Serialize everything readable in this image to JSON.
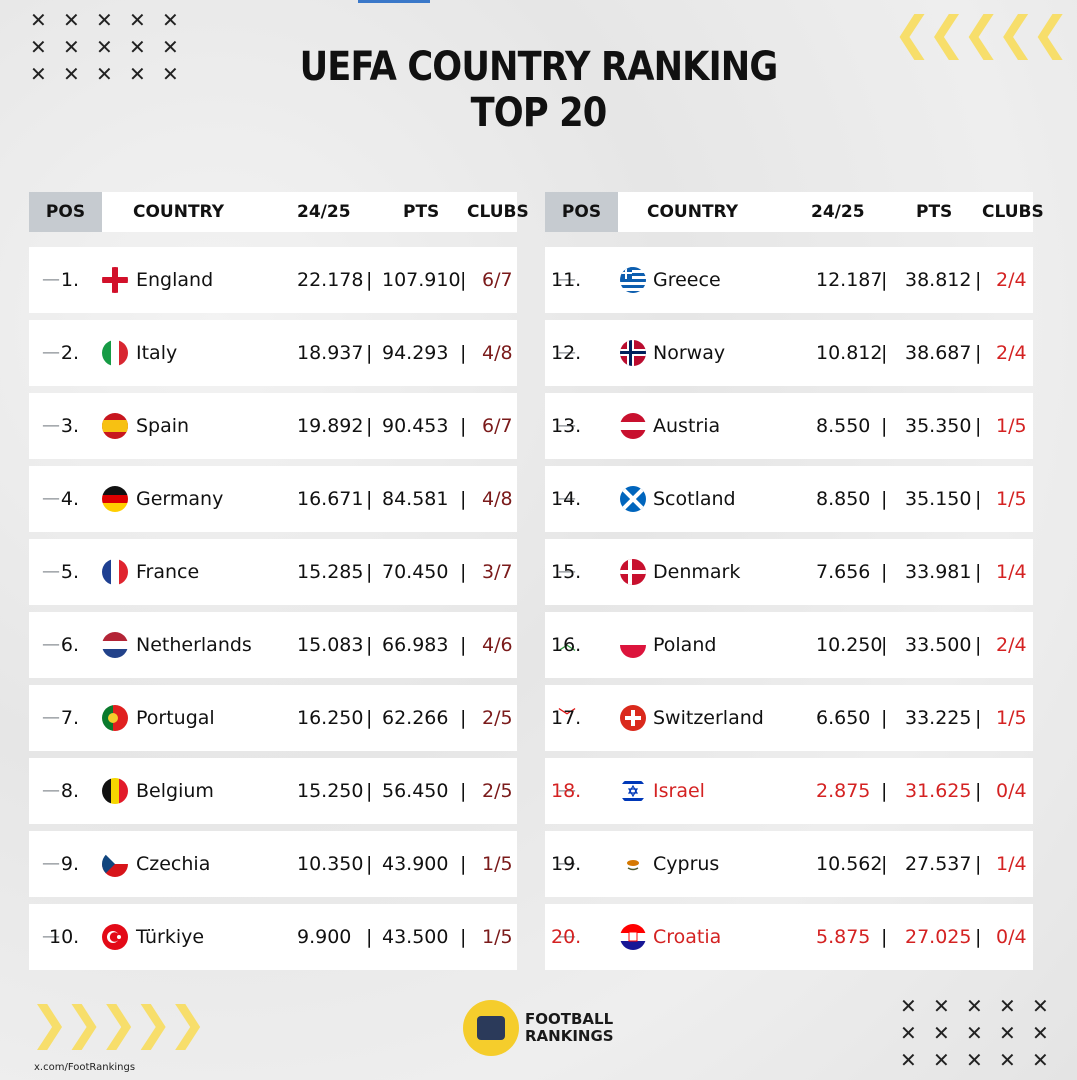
{
  "title_line1": "UEFA COUNTRY RANKING",
  "title_line2": "TOP 20",
  "headers": {
    "pos": "POS",
    "country": "COUNTRY",
    "season": "24/25",
    "pts": "PTS",
    "clubs": "CLUBS"
  },
  "left": [
    {
      "trend": "—",
      "rank": "1.",
      "flag": "england",
      "country": "England",
      "season": "22.178",
      "pts": "107.910",
      "clubs": "6/7"
    },
    {
      "trend": "—",
      "rank": "2.",
      "flag": "italy",
      "country": "Italy",
      "season": "18.937",
      "pts": "94.293",
      "clubs": "4/8"
    },
    {
      "trend": "—",
      "rank": "3.",
      "flag": "spain",
      "country": "Spain",
      "season": "19.892",
      "pts": "90.453",
      "clubs": "6/7"
    },
    {
      "trend": "—",
      "rank": "4.",
      "flag": "germany",
      "country": "Germany",
      "season": "16.671",
      "pts": "84.581",
      "clubs": "4/8"
    },
    {
      "trend": "—",
      "rank": "5.",
      "flag": "france",
      "country": "France",
      "season": "15.285",
      "pts": "70.450",
      "clubs": "3/7"
    },
    {
      "trend": "—",
      "rank": "6.",
      "flag": "netherlands",
      "country": "Netherlands",
      "season": "15.083",
      "pts": "66.983",
      "clubs": "4/6"
    },
    {
      "trend": "—",
      "rank": "7.",
      "flag": "portugal",
      "country": "Portugal",
      "season": "16.250",
      "pts": "62.266",
      "clubs": "2/5"
    },
    {
      "trend": "—",
      "rank": "8.",
      "flag": "belgium",
      "country": "Belgium",
      "season": "15.250",
      "pts": "56.450",
      "clubs": "2/5"
    },
    {
      "trend": "—",
      "rank": "9.",
      "flag": "czechia",
      "country": "Czechia",
      "season": "10.350",
      "pts": "43.900",
      "clubs": "1/5"
    },
    {
      "trend": "—",
      "rank": "10.",
      "flag": "turkiye",
      "country": "Türkiye",
      "season": "9.900",
      "pts": "43.500",
      "clubs": "1/5"
    }
  ],
  "right": [
    {
      "trend": "—",
      "rank": "11.",
      "flag": "greece",
      "country": "Greece",
      "season": "12.187",
      "pts": "38.812",
      "clubs": "2/4"
    },
    {
      "trend": "—",
      "rank": "12.",
      "flag": "norway",
      "country": "Norway",
      "season": "10.812",
      "pts": "38.687",
      "clubs": "2/4"
    },
    {
      "trend": "—",
      "rank": "13.",
      "flag": "austria",
      "country": "Austria",
      "season": "8.550",
      "pts": "35.350",
      "clubs": "1/5"
    },
    {
      "trend": "—",
      "rank": "14.",
      "flag": "scotland",
      "country": "Scotland",
      "season": "8.850",
      "pts": "35.150",
      "clubs": "1/5"
    },
    {
      "trend": "—",
      "rank": "15.",
      "flag": "denmark",
      "country": "Denmark",
      "season": "7.656",
      "pts": "33.981",
      "clubs": "1/4"
    },
    {
      "trend": "︿",
      "rank": "16.",
      "flag": "poland",
      "country": "Poland",
      "season": "10.250",
      "pts": "33.500",
      "clubs": "2/4"
    },
    {
      "trend": "﹀",
      "rank": "17.",
      "flag": "switzerland",
      "country": "Switzerland",
      "season": "6.650",
      "pts": "33.225",
      "clubs": "1/5"
    },
    {
      "trend": "—",
      "rank": "18.",
      "flag": "israel",
      "country": "Israel",
      "season": "2.875",
      "pts": "31.625",
      "clubs": "0/4",
      "highlight": true
    },
    {
      "trend": "—",
      "rank": "19.",
      "flag": "cyprus",
      "country": "Cyprus",
      "season": "10.562",
      "pts": "27.537",
      "clubs": "1/4"
    },
    {
      "trend": "—",
      "rank": "20.",
      "flag": "croatia",
      "country": "Croatia",
      "season": "5.875",
      "pts": "27.025",
      "clubs": "0/4",
      "highlight": true
    }
  ],
  "brand": {
    "line1": "FOOTBALL",
    "line2": "RANKINGS",
    "handle": "x.com/FootRankings"
  },
  "decor": {
    "x_mark": "✕",
    "chevrons_left": "❮❮❮❮❮",
    "chevrons_right": "❯❯❯❯❯"
  },
  "colors": {
    "accent_red": "#d42222",
    "trend_up": "#2e9a3e",
    "header_pos_bg": "#c6cbd0",
    "chevron": "#f7de6b"
  }
}
